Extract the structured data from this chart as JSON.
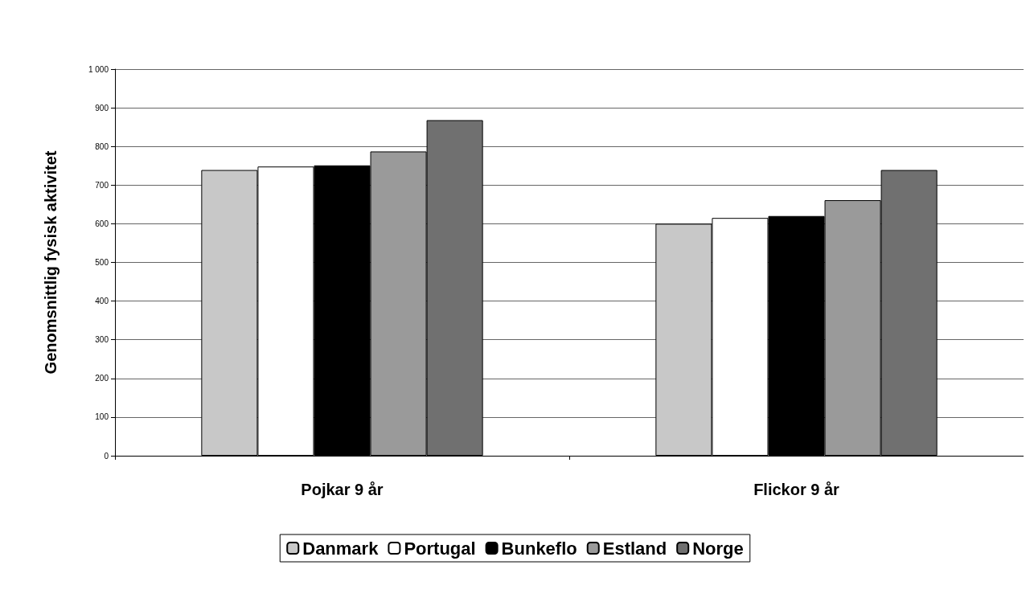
{
  "chart_data": {
    "type": "bar",
    "ylabel": "Genomsnittlig fysisk aktivitet",
    "categories": [
      "Pojkar 9 år",
      "Flickor 9 år"
    ],
    "series": [
      {
        "name": "Danmark",
        "color": "#c8c8c8",
        "values": [
          739,
          600
        ]
      },
      {
        "name": "Portugal",
        "color": "#ffffff",
        "values": [
          748,
          615
        ]
      },
      {
        "name": "Bunkeflo",
        "color": "#000000",
        "values": [
          751,
          620
        ]
      },
      {
        "name": "Estland",
        "color": "#9a9a9a",
        "values": [
          787,
          661
        ]
      },
      {
        "name": "Norge",
        "color": "#707070",
        "values": [
          868,
          739
        ]
      }
    ],
    "ylim": [
      0,
      1000
    ],
    "yticks": [
      0,
      100,
      200,
      300,
      400,
      500,
      600,
      700,
      800,
      900,
      {
        "value": 1000,
        "label": "1 000"
      }
    ],
    "grid": "y",
    "legend": "bottom"
  }
}
